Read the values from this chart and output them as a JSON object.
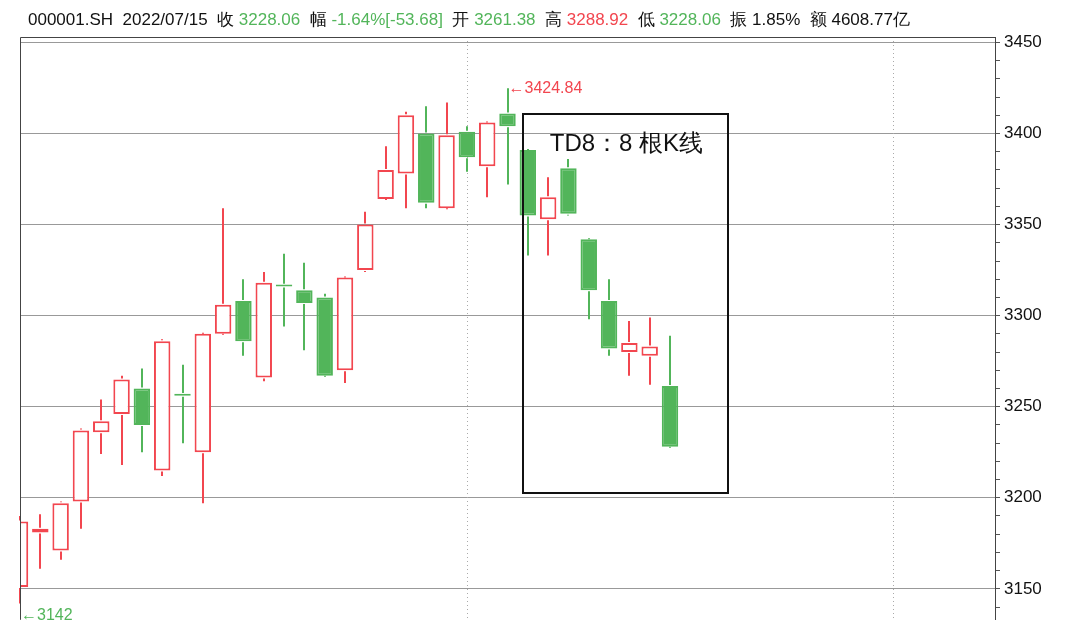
{
  "chart_data": {
    "type": "candlestick",
    "title": "000001.SH 2022/07/15 收 3228.06 幅 -1.64%[-53.68] 开 3261.38 高 3288.92 低 3228.06 振 1.85% 额 4608.77亿",
    "categories": [
      null,
      null,
      null,
      null,
      null,
      null,
      null,
      null,
      null,
      null,
      null,
      null,
      null,
      null,
      null,
      null,
      null,
      null,
      null,
      null,
      null,
      null,
      null,
      null,
      null,
      null,
      null,
      null,
      null,
      null,
      null,
      null,
      null,
      null,
      null,
      null,
      null,
      null,
      null,
      null,
      null,
      null,
      null,
      null,
      null,
      null,
      null,
      null,
      null
    ],
    "ohlc": [
      [
        3151,
        3190,
        3142,
        3187
      ],
      [
        3181,
        3191,
        3161,
        3183
      ],
      [
        3171,
        3198,
        3166,
        3197
      ],
      [
        3198,
        3238,
        3183,
        3237
      ],
      [
        3236,
        3254,
        3224,
        3242
      ],
      [
        3246,
        3267,
        3218,
        3265
      ],
      [
        3260,
        3271,
        3225,
        3240
      ],
      [
        3215,
        3287,
        3212,
        3286
      ],
      [
        3257,
        3273,
        3230,
        3256
      ],
      [
        3225,
        3290,
        3197,
        3290
      ],
      [
        3290,
        3359,
        3290,
        3306
      ],
      [
        3308,
        3320,
        3278,
        3286
      ],
      [
        3266,
        3324,
        3264,
        3318
      ],
      [
        3317,
        3334,
        3294,
        3316
      ],
      [
        3314,
        3329,
        3281,
        3307
      ],
      [
        3310,
        3312,
        3267,
        3267
      ],
      [
        3270,
        3321,
        3263,
        3321
      ],
      [
        3325,
        3357,
        3324,
        3350
      ],
      [
        3364,
        3393,
        3364,
        3380
      ],
      [
        3378,
        3412,
        3359,
        3410
      ],
      [
        3400,
        3415,
        3359,
        3362
      ],
      [
        3359,
        3417,
        3359,
        3399
      ],
      [
        3401,
        3404,
        3379,
        3387
      ],
      [
        3382,
        3406,
        3365,
        3406
      ],
      [
        3411,
        3424.84,
        3372,
        3404
      ],
      [
        3391,
        3391,
        3333,
        3355
      ],
      [
        3353,
        3376,
        3333,
        3365
      ],
      [
        3381,
        3386,
        3355,
        3356
      ],
      [
        3342,
        3342,
        3298,
        3314
      ],
      [
        3308,
        3320,
        3278,
        3282
      ],
      [
        3280,
        3297,
        3267,
        3285
      ],
      [
        3278,
        3299,
        3262,
        3283
      ],
      [
        3261.38,
        3288.92,
        3228.06,
        3228.06
      ],
      null,
      null,
      null,
      null,
      null,
      null,
      null,
      null,
      null,
      null,
      null,
      null,
      null,
      null,
      null,
      null
    ],
    "ylim": [
      3133,
      3453
    ],
    "yticks": [
      {
        "value": 3140,
        "label": null
      },
      3150,
      {
        "value": 3160,
        "label": null
      },
      {
        "value": 3170,
        "label": null
      },
      {
        "value": 3180,
        "label": null
      },
      {
        "value": 3190,
        "label": null
      },
      3200,
      {
        "value": 3210,
        "label": null
      },
      {
        "value": 3220,
        "label": null
      },
      {
        "value": 3230,
        "label": null
      },
      {
        "value": 3240,
        "label": null
      },
      3250,
      {
        "value": 3260,
        "label": null
      },
      {
        "value": 3270,
        "label": null
      },
      {
        "value": 3280,
        "label": null
      },
      {
        "value": 3290,
        "label": null
      },
      3300,
      {
        "value": 3310,
        "label": null
      },
      {
        "value": 3320,
        "label": null
      },
      {
        "value": 3330,
        "label": null
      },
      {
        "value": 3340,
        "label": null
      },
      3350,
      {
        "value": 3360,
        "label": null
      },
      {
        "value": 3370,
        "label": null
      },
      {
        "value": 3380,
        "label": null
      },
      {
        "value": 3390,
        "label": null
      },
      3400,
      {
        "value": 3410,
        "label": null
      },
      {
        "value": 3420,
        "label": null
      },
      {
        "value": 3430,
        "label": null
      },
      {
        "value": 3440,
        "label": null
      },
      3450
    ],
    "grid": "y",
    "tick_labels": "y",
    "annotations": [
      "←3424.84",
      "←3142",
      "TD8：8 根K线"
    ]
  }
}
